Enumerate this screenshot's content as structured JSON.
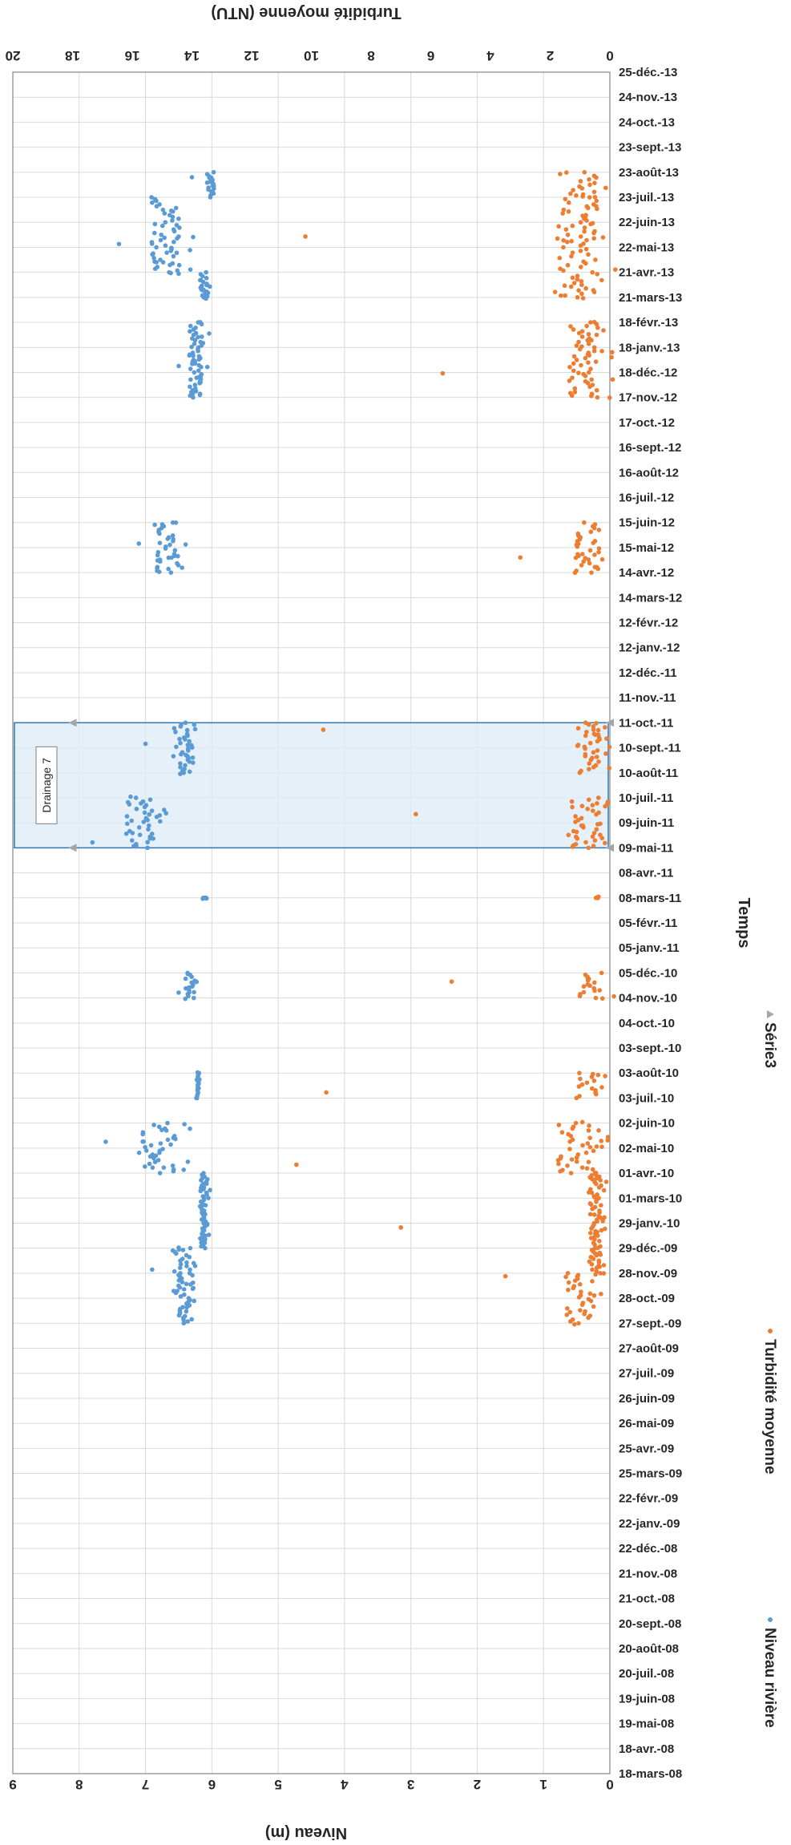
{
  "chart_data": {
    "type": "scatter",
    "xlabel": "Temps",
    "y_left_label": "Niveau (m)",
    "y_right_label": "Turbidité moyenne (NTU)",
    "y_left_range": [
      0,
      9
    ],
    "y_left_ticks": [
      "0",
      "1",
      "2",
      "3",
      "4",
      "5",
      "6",
      "7",
      "8",
      "9"
    ],
    "y_right_range": [
      0,
      20
    ],
    "y_right_ticks": [
      "0",
      "2",
      "4",
      "6",
      "8",
      "10",
      "12",
      "14",
      "16",
      "18",
      "20"
    ],
    "x_tick_labels": [
      "18-mars-08",
      "18-avr.-08",
      "19-mai-08",
      "19-juin-08",
      "20-juil.-08",
      "20-août-08",
      "20-sept.-08",
      "21-oct.-08",
      "21-nov.-08",
      "22-déc.-08",
      "22-janv.-09",
      "22-févr.-09",
      "25-mars-09",
      "25-avr.-09",
      "26-mai-09",
      "26-juin-09",
      "27-juil.-09",
      "27-août-09",
      "27-sept.-09",
      "28-oct.-09",
      "28-nov.-09",
      "29-déc.-09",
      "29-janv.-10",
      "01-mars-10",
      "01-avr.-10",
      "02-mai-10",
      "02-juin-10",
      "03-juil.-10",
      "03-août-10",
      "03-sept.-10",
      "04-oct.-10",
      "04-nov.-10",
      "05-déc.-10",
      "05-janv.-11",
      "05-févr.-11",
      "08-mars-11",
      "08-avr.-11",
      "09-mai-11",
      "09-juin-11",
      "10-juil.-11",
      "10-août-11",
      "10-sept.-11",
      "11-oct.-11",
      "11-nov.-11",
      "12-déc.-11",
      "12-janv.-12",
      "12-févr.-12",
      "14-mars-12",
      "14-avr.-12",
      "15-mai-12",
      "15-juin-12",
      "16-juil.-12",
      "16-août-12",
      "16-sept.-12",
      "17-oct.-12",
      "17-nov.-12",
      "18-déc.-12",
      "18-janv.-13",
      "18-févr.-13",
      "21-mars-13",
      "21-avr.-13",
      "22-mai-13",
      "22-juin-13",
      "23-juil.-13",
      "23-août-13",
      "23-sept.-13",
      "24-oct.-13",
      "24-nov.-13",
      "25-déc.-13"
    ],
    "grid": true,
    "orientation": "rotated-90-clockwise",
    "legend_position": "bottom",
    "annotation": {
      "text": "Drainage 7",
      "from": "09-mai-11",
      "to": "11-oct.-11"
    },
    "series": [
      {
        "name": "Niveau rivière",
        "axis": "left",
        "color": "#5b9bd5",
        "marker": "circle",
        "segments": [
          {
            "start": "27-sept.-09",
            "end": "29-déc.-09",
            "base": 6.4,
            "spread": 0.25,
            "peak": 6.9
          },
          {
            "start": "29-déc.-09",
            "end": "01-avr.-10",
            "base": 6.1,
            "spread": 0.1,
            "peak": 6.5
          },
          {
            "start": "01-avr.-10",
            "end": "02-juin-10",
            "base": 6.7,
            "spread": 0.5,
            "peak": 7.6
          },
          {
            "start": "03-juil.-10",
            "end": "03-août-10",
            "base": 6.2,
            "spread": 0.05,
            "peak": 6.2
          },
          {
            "start": "04-nov.-10",
            "end": "05-déc.-10",
            "base": 6.3,
            "spread": 0.15,
            "peak": 6.5
          },
          {
            "start": "08-mars-11",
            "end": "08-mars-11",
            "base": 6.1,
            "spread": 0.05,
            "peak": 6.1
          },
          {
            "start": "09-mai-11",
            "end": "10-juil.-11",
            "base": 7.0,
            "spread": 0.4,
            "peak": 7.8
          },
          {
            "start": "10-août-11",
            "end": "11-oct.-11",
            "base": 6.4,
            "spread": 0.25,
            "peak": 7.0
          },
          {
            "start": "14-avr.-12",
            "end": "15-juin-12",
            "base": 6.6,
            "spread": 0.35,
            "peak": 7.1
          },
          {
            "start": "17-nov.-12",
            "end": "18-févr.-13",
            "base": 6.2,
            "spread": 0.2,
            "peak": 6.5
          },
          {
            "start": "21-mars-13",
            "end": "21-avr.-13",
            "base": 6.1,
            "spread": 0.1,
            "peak": 6.5
          },
          {
            "start": "21-avr.-13",
            "end": "23-juil.-13",
            "base": 6.6,
            "spread": 0.45,
            "peak": 7.4
          },
          {
            "start": "23-juil.-13",
            "end": "23-août-13",
            "base": 6.0,
            "spread": 0.1,
            "peak": 6.3
          }
        ]
      },
      {
        "name": "Turbidité moyenne",
        "axis": "right",
        "color": "#ed7d31",
        "marker": "circle",
        "segments": [
          {
            "start": "27-sept.-09",
            "end": "28-nov.-09",
            "base": 0.8,
            "spread": 1.0,
            "peak": 3.5
          },
          {
            "start": "28-nov.-09",
            "end": "01-avr.-10",
            "base": 0.4,
            "spread": 0.4,
            "peak": 7.0
          },
          {
            "start": "01-avr.-10",
            "end": "02-juin-10",
            "base": 0.9,
            "spread": 1.2,
            "peak": 10.5
          },
          {
            "start": "03-juil.-10",
            "end": "03-août-10",
            "base": 0.6,
            "spread": 0.8,
            "peak": 9.5
          },
          {
            "start": "04-nov.-10",
            "end": "05-déc.-10",
            "base": 0.5,
            "spread": 0.8,
            "peak": 5.3
          },
          {
            "start": "08-mars-11",
            "end": "08-mars-11",
            "base": 0.4,
            "spread": 0.1,
            "peak": 0.4
          },
          {
            "start": "09-mai-11",
            "end": "10-juil.-11",
            "base": 0.6,
            "spread": 1.0,
            "peak": 6.5
          },
          {
            "start": "10-août-11",
            "end": "11-oct.-11",
            "base": 0.5,
            "spread": 0.8,
            "peak": 9.6
          },
          {
            "start": "14-avr.-12",
            "end": "15-juin-12",
            "base": 0.6,
            "spread": 0.8,
            "peak": 3.0
          },
          {
            "start": "17-nov.-12",
            "end": "18-févr.-13",
            "base": 0.7,
            "spread": 1.0,
            "peak": 5.6
          },
          {
            "start": "21-mars-13",
            "end": "23-août-13",
            "base": 0.8,
            "spread": 1.3,
            "peak": 10.2
          }
        ]
      },
      {
        "name": "Série3",
        "axis": "left",
        "color": "#a5a5a5",
        "marker": "triangle",
        "points": [
          {
            "x": "09-mai-11",
            "y": 0
          },
          {
            "x": "09-mai-11",
            "y": 8.1
          },
          {
            "x": "11-oct.-11",
            "y": 0
          },
          {
            "x": "11-oct.-11",
            "y": 8.1
          }
        ]
      }
    ]
  }
}
